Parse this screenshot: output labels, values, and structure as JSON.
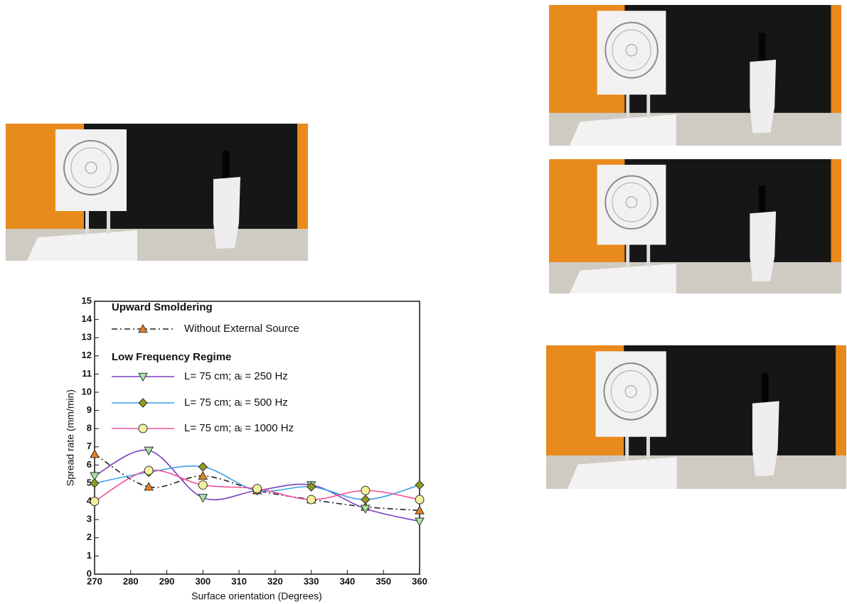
{
  "chart_data": {
    "type": "line",
    "x": [
      270,
      285,
      300,
      315,
      330,
      345,
      360
    ],
    "xlim": [
      270,
      360
    ],
    "xticks": [
      270,
      280,
      290,
      300,
      310,
      320,
      330,
      340,
      350,
      360
    ],
    "ylim": [
      0,
      15
    ],
    "yticks": [
      0,
      1,
      2,
      3,
      4,
      5,
      6,
      7,
      8,
      9,
      10,
      11,
      12,
      13,
      14,
      15
    ],
    "xlabel": "Surface orientation (Degrees)",
    "ylabel": "Spread rate (mm/min)",
    "annotations": [
      "Upward Smoldering",
      "Low Frequency Regime"
    ],
    "series": [
      {
        "name": "Without External Source",
        "color": "#222222",
        "dash": "dashdot",
        "marker": "triangle-up",
        "marker_color": "#e8801e",
        "values": [
          6.6,
          4.8,
          5.4,
          4.6,
          4.1,
          3.7,
          3.5
        ]
      },
      {
        "name": "L= 75 cm; aᵢ = 250 Hz",
        "color": "#7a3fc0",
        "dash": "solid",
        "marker": "triangle-down",
        "marker_color": "#a6e3a0",
        "values": [
          5.4,
          6.8,
          4.2,
          4.6,
          4.9,
          3.6,
          2.9
        ]
      },
      {
        "name": "L= 75 cm; aᵢ = 500 Hz",
        "color": "#3aa0e8",
        "dash": "solid",
        "marker": "diamond",
        "marker_color": "#8f9a1e",
        "values": [
          5.0,
          5.6,
          5.9,
          4.6,
          4.8,
          4.1,
          4.9
        ]
      },
      {
        "name": "L= 75 cm; aᵢ = 1000 Hz",
        "color": "#f0509a",
        "dash": "solid",
        "marker": "circle",
        "marker_color": "#f5f0a0",
        "values": [
          4.0,
          5.7,
          4.9,
          4.7,
          4.1,
          4.6,
          4.1
        ]
      }
    ]
  }
}
